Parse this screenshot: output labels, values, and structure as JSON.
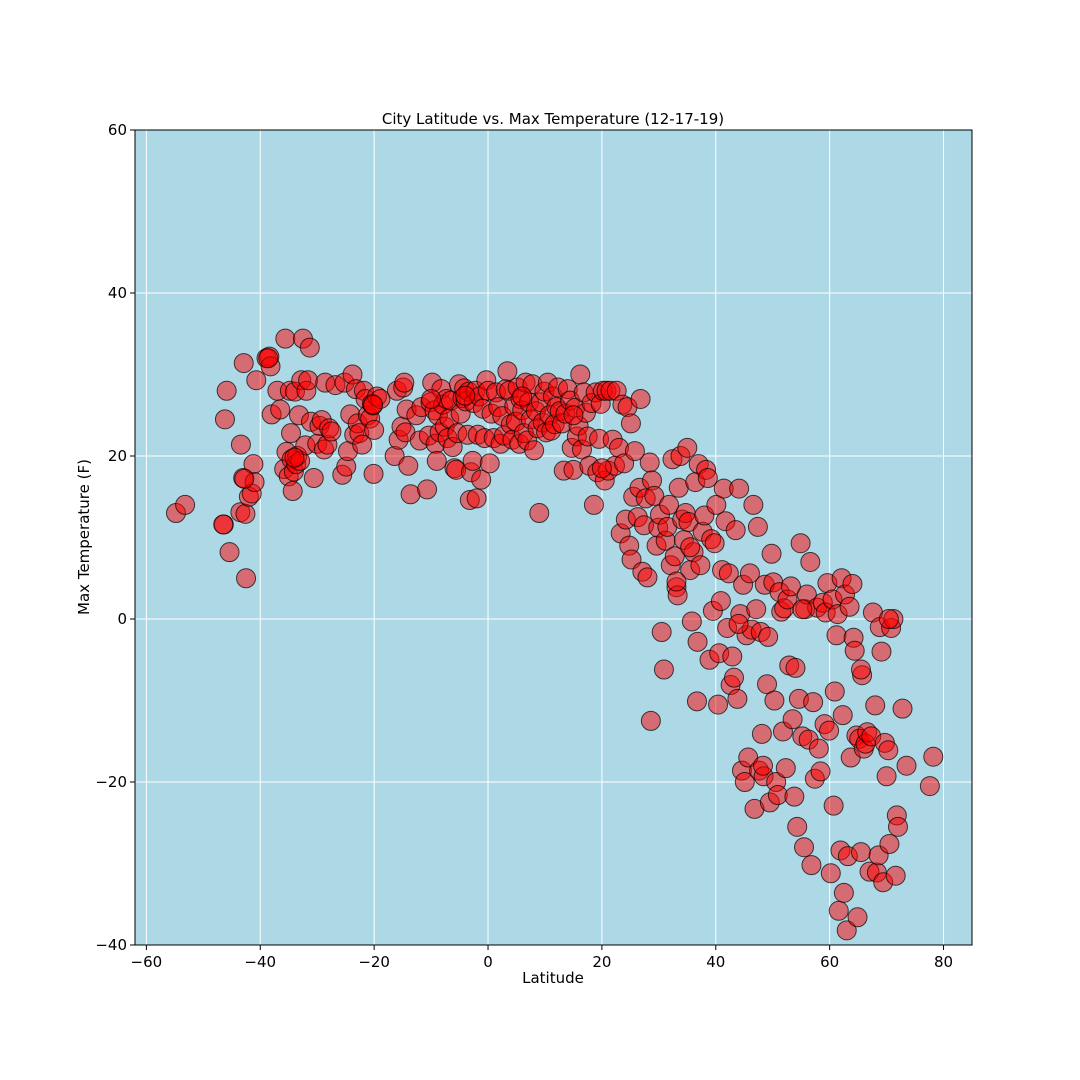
{
  "chart_data": {
    "type": "scatter",
    "title": "City Latitude vs. Max Temperature (12-17-19)",
    "xlabel": "Latitude",
    "ylabel": "Max Temperature (F)",
    "xlim": [
      -62,
      85
    ],
    "ylim": [
      -40,
      60
    ],
    "xticks": [
      -60,
      -40,
      -20,
      0,
      20,
      40,
      60,
      80
    ],
    "yticks": [
      -40,
      -20,
      0,
      20,
      40,
      60
    ],
    "grid": true,
    "colors": {
      "background": "#add8e6",
      "marker_fill": "#ff0000",
      "marker_edge": "#000000",
      "grid": "#ffffff"
    },
    "points": [
      [
        -54.8,
        13.0
      ],
      [
        -53.2,
        14.0
      ],
      [
        -46.4,
        11.6
      ],
      [
        -46.2,
        24.5
      ],
      [
        -45.9,
        28.0
      ],
      [
        -45.4,
        8.2
      ],
      [
        -43.5,
        13.1
      ],
      [
        -43.4,
        21.4
      ],
      [
        -43.0,
        17.3
      ],
      [
        -42.9,
        31.4
      ],
      [
        -42.6,
        12.9
      ],
      [
        -42.5,
        5.0
      ],
      [
        -42.0,
        15.0
      ],
      [
        -41.5,
        15.4
      ],
      [
        -41.2,
        19.0
      ],
      [
        -41.0,
        16.8
      ],
      [
        -40.7,
        29.3
      ],
      [
        -38.9,
        32.0
      ],
      [
        -38.4,
        32.2
      ],
      [
        -38.2,
        31.0
      ],
      [
        -38.0,
        25.1
      ],
      [
        -37.0,
        28.0
      ],
      [
        -36.5,
        25.7
      ],
      [
        -35.8,
        18.4
      ],
      [
        -35.6,
        34.4
      ],
      [
        -35.4,
        20.5
      ],
      [
        -35.0,
        17.5
      ],
      [
        -34.8,
        28.0
      ],
      [
        -34.6,
        22.8
      ],
      [
        -34.5,
        19.6
      ],
      [
        -34.3,
        15.7
      ],
      [
        -34.1,
        18.1
      ],
      [
        -33.9,
        27.9
      ],
      [
        -33.7,
        19.0
      ],
      [
        -33.5,
        20.0
      ],
      [
        -33.2,
        25.0
      ],
      [
        -33.0,
        19.4
      ],
      [
        -32.8,
        29.3
      ],
      [
        -32.5,
        34.4
      ],
      [
        -32.1,
        21.3
      ],
      [
        -31.9,
        28.0
      ],
      [
        -31.6,
        29.3
      ],
      [
        -31.3,
        33.3
      ],
      [
        -31.1,
        24.2
      ],
      [
        -30.6,
        17.3
      ],
      [
        -30.0,
        21.5
      ],
      [
        -29.6,
        23.7
      ],
      [
        -29.2,
        24.4
      ],
      [
        -28.8,
        20.8
      ],
      [
        -28.6,
        29.0
      ],
      [
        -28.2,
        21.4
      ],
      [
        -27.9,
        23.4
      ],
      [
        -27.5,
        23.0
      ],
      [
        -26.8,
        28.7
      ],
      [
        -25.6,
        17.7
      ],
      [
        -25.2,
        29.0
      ],
      [
        -24.9,
        18.7
      ],
      [
        -24.6,
        20.6
      ],
      [
        -24.2,
        25.1
      ],
      [
        -23.8,
        30.0
      ],
      [
        -23.5,
        22.6
      ],
      [
        -23.2,
        28.2
      ],
      [
        -22.9,
        24.0
      ],
      [
        -22.6,
        22.8
      ],
      [
        -22.1,
        21.4
      ],
      [
        -21.8,
        28.0
      ],
      [
        -21.5,
        27.0
      ],
      [
        -21.1,
        25.0
      ],
      [
        -20.7,
        24.6
      ],
      [
        -20.4,
        26.4
      ],
      [
        -20.2,
        26.2
      ],
      [
        -20.0,
        23.2
      ],
      [
        -20.1,
        17.8
      ],
      [
        -19.5,
        27.3
      ],
      [
        -18.9,
        27.0
      ],
      [
        -16.4,
        20.0
      ],
      [
        -16.0,
        28.0
      ],
      [
        -15.7,
        22.0
      ],
      [
        -15.2,
        23.6
      ],
      [
        -14.9,
        28.4
      ],
      [
        -14.7,
        29.0
      ],
      [
        -14.5,
        22.9
      ],
      [
        -14.3,
        25.7
      ],
      [
        -14.0,
        18.8
      ],
      [
        -13.6,
        15.3
      ],
      [
        -12.6,
        25.0
      ],
      [
        -12.0,
        21.9
      ],
      [
        -11.7,
        26.0
      ],
      [
        -10.7,
        15.9
      ],
      [
        -10.4,
        22.5
      ],
      [
        -10.1,
        26.6
      ],
      [
        -9.8,
        29.0
      ],
      [
        -9.4,
        25.6
      ],
      [
        -9.2,
        21.5
      ],
      [
        -9.0,
        19.4
      ],
      [
        -8.8,
        25.0
      ],
      [
        -8.5,
        22.9
      ],
      [
        -8.2,
        28.2
      ],
      [
        -7.9,
        26.3
      ],
      [
        -7.6,
        23.6
      ],
      [
        -7.3,
        27.0
      ],
      [
        -7.1,
        22.2
      ],
      [
        -6.8,
        24.6
      ],
      [
        -6.5,
        26.8
      ],
      [
        -6.2,
        21.1
      ],
      [
        -5.9,
        18.5
      ],
      [
        -5.6,
        18.3
      ],
      [
        -5.4,
        22.8
      ],
      [
        -5.1,
        28.8
      ],
      [
        -4.8,
        25.2
      ],
      [
        -4.5,
        27.1
      ],
      [
        -4.2,
        28.3
      ],
      [
        -3.9,
        26.7
      ],
      [
        -3.6,
        22.6
      ],
      [
        -3.4,
        27.9
      ],
      [
        -3.2,
        14.6
      ],
      [
        -3.0,
        18.0
      ],
      [
        -2.7,
        19.4
      ],
      [
        -2.5,
        26.5
      ],
      [
        -2.2,
        28.0
      ],
      [
        -2.0,
        14.8
      ],
      [
        -1.8,
        22.6
      ],
      [
        -1.5,
        27.3
      ],
      [
        -1.2,
        17.1
      ],
      [
        -0.9,
        25.8
      ],
      [
        -0.6,
        22.2
      ],
      [
        -0.3,
        29.3
      ],
      [
        0.0,
        28.0
      ],
      [
        0.3,
        19.1
      ],
      [
        0.6,
        25.2
      ],
      [
        1.0,
        22.2
      ],
      [
        1.4,
        27.8
      ],
      [
        1.8,
        26.0
      ],
      [
        2.2,
        21.5
      ],
      [
        2.5,
        24.9
      ],
      [
        2.8,
        22.5
      ],
      [
        3.1,
        28.2
      ],
      [
        3.4,
        30.4
      ],
      [
        3.7,
        28.0
      ],
      [
        4.0,
        23.9
      ],
      [
        4.3,
        22.0
      ],
      [
        4.6,
        26.1
      ],
      [
        4.9,
        24.2
      ],
      [
        5.2,
        28.4
      ],
      [
        5.5,
        21.5
      ],
      [
        5.7,
        27.0
      ],
      [
        6.0,
        25.6
      ],
      [
        6.3,
        22.8
      ],
      [
        6.6,
        29.0
      ],
      [
        6.9,
        21.9
      ],
      [
        7.2,
        26.6
      ],
      [
        7.5,
        24.5
      ],
      [
        7.8,
        28.8
      ],
      [
        8.1,
        20.7
      ],
      [
        8.4,
        25.5
      ],
      [
        8.7,
        23.4
      ],
      [
        9.0,
        13.0
      ],
      [
        9.3,
        26.6
      ],
      [
        9.6,
        24.1
      ],
      [
        9.9,
        27.9
      ],
      [
        10.2,
        22.9
      ],
      [
        10.5,
        29.0
      ],
      [
        10.8,
        25.0
      ],
      [
        11.1,
        23.1
      ],
      [
        11.4,
        27.3
      ],
      [
        11.7,
        23.9
      ],
      [
        12.0,
        26.0
      ],
      [
        12.3,
        28.4
      ],
      [
        12.6,
        25.5
      ],
      [
        13.0,
        24.0
      ],
      [
        13.3,
        18.2
      ],
      [
        13.6,
        25.2
      ],
      [
        14.0,
        28.2
      ],
      [
        14.4,
        26.8
      ],
      [
        14.7,
        21.0
      ],
      [
        15.0,
        18.3
      ],
      [
        15.3,
        25.9
      ],
      [
        15.6,
        22.4
      ],
      [
        15.9,
        23.7
      ],
      [
        16.2,
        30.0
      ],
      [
        16.5,
        20.8
      ],
      [
        16.8,
        27.8
      ],
      [
        17.2,
        25.3
      ],
      [
        17.5,
        22.4
      ],
      [
        17.8,
        18.8
      ],
      [
        18.2,
        26.5
      ],
      [
        18.6,
        14.0
      ],
      [
        18.9,
        27.8
      ],
      [
        19.2,
        18.0
      ],
      [
        19.5,
        22.1
      ],
      [
        19.8,
        26.4
      ],
      [
        20.2,
        28.0
      ],
      [
        20.5,
        17.0
      ],
      [
        20.8,
        28.0
      ],
      [
        21.1,
        18.2
      ],
      [
        21.5,
        28.0
      ],
      [
        21.9,
        22.0
      ],
      [
        22.3,
        18.8
      ],
      [
        22.6,
        28.0
      ],
      [
        23.0,
        21.0
      ],
      [
        23.3,
        10.5
      ],
      [
        23.6,
        26.3
      ],
      [
        23.9,
        19.1
      ],
      [
        24.2,
        12.2
      ],
      [
        24.5,
        26.0
      ],
      [
        24.8,
        9.0
      ],
      [
        25.1,
        24.0
      ],
      [
        25.2,
        7.3
      ],
      [
        25.5,
        15.0
      ],
      [
        25.8,
        20.6
      ],
      [
        26.3,
        12.5
      ],
      [
        26.6,
        16.1
      ],
      [
        26.8,
        27.0
      ],
      [
        27.1,
        5.8
      ],
      [
        27.4,
        11.5
      ],
      [
        27.7,
        14.8
      ],
      [
        28.0,
        5.1
      ],
      [
        28.4,
        19.2
      ],
      [
        28.6,
        -12.5
      ],
      [
        28.8,
        17.0
      ],
      [
        29.2,
        15.1
      ],
      [
        29.6,
        9.0
      ],
      [
        29.9,
        11.2
      ],
      [
        30.2,
        12.8
      ],
      [
        30.5,
        -1.6
      ],
      [
        30.9,
        -6.2
      ],
      [
        31.2,
        9.6
      ],
      [
        31.5,
        11.3
      ],
      [
        31.8,
        14.0
      ],
      [
        32.1,
        6.6
      ],
      [
        32.4,
        19.6
      ],
      [
        32.8,
        7.7
      ],
      [
        33.1,
        3.9
      ],
      [
        33.3,
        2.9
      ],
      [
        33.5,
        16.1
      ],
      [
        33.8,
        20.0
      ],
      [
        34.1,
        12.2
      ],
      [
        34.4,
        9.7
      ],
      [
        34.7,
        13.0
      ],
      [
        35.0,
        21.0
      ],
      [
        35.2,
        11.9
      ],
      [
        35.5,
        6.0
      ],
      [
        35.8,
        -0.3
      ],
      [
        36.1,
        8.2
      ],
      [
        36.4,
        16.8
      ],
      [
        36.7,
        -10.1
      ],
      [
        36.8,
        -2.8
      ],
      [
        37.0,
        19.0
      ],
      [
        37.3,
        6.6
      ],
      [
        37.7,
        10.7
      ],
      [
        38.0,
        12.7
      ],
      [
        38.3,
        18.3
      ],
      [
        38.6,
        17.3
      ],
      [
        38.9,
        -5.0
      ],
      [
        39.2,
        9.8
      ],
      [
        39.5,
        1.0
      ],
      [
        39.8,
        9.3
      ],
      [
        40.1,
        14.0
      ],
      [
        40.4,
        -10.5
      ],
      [
        40.6,
        -4.2
      ],
      [
        40.9,
        2.2
      ],
      [
        41.1,
        6.0
      ],
      [
        41.4,
        16.0
      ],
      [
        41.7,
        12.0
      ],
      [
        42.0,
        -1.1
      ],
      [
        42.3,
        5.6
      ],
      [
        42.6,
        -8.1
      ],
      [
        42.9,
        -4.6
      ],
      [
        43.2,
        -7.2
      ],
      [
        43.5,
        10.9
      ],
      [
        43.8,
        -9.8
      ],
      [
        44.1,
        16.0
      ],
      [
        44.3,
        0.6
      ],
      [
        44.6,
        -18.6
      ],
      [
        44.8,
        4.2
      ],
      [
        45.1,
        -20.0
      ],
      [
        45.4,
        -2.0
      ],
      [
        45.7,
        -17.0
      ],
      [
        46.0,
        5.6
      ],
      [
        46.3,
        -1.3
      ],
      [
        46.6,
        14.0
      ],
      [
        46.8,
        -23.3
      ],
      [
        47.1,
        1.2
      ],
      [
        47.4,
        11.3
      ],
      [
        47.6,
        -18.6
      ],
      [
        47.9,
        -1.6
      ],
      [
        48.1,
        -14.1
      ],
      [
        48.4,
        -19.3
      ],
      [
        48.6,
        4.2
      ],
      [
        49.0,
        -8.0
      ],
      [
        49.2,
        -2.2
      ],
      [
        49.5,
        -22.5
      ],
      [
        49.8,
        8.0
      ],
      [
        50.1,
        4.5
      ],
      [
        50.3,
        -10.0
      ],
      [
        50.6,
        -20.0
      ],
      [
        50.9,
        -21.6
      ],
      [
        51.2,
        3.3
      ],
      [
        51.5,
        0.9
      ],
      [
        51.8,
        -13.8
      ],
      [
        52.0,
        1.3
      ],
      [
        52.3,
        -18.3
      ],
      [
        52.6,
        2.4
      ],
      [
        52.9,
        -5.7
      ],
      [
        53.2,
        4.0
      ],
      [
        53.5,
        -12.3
      ],
      [
        53.8,
        -21.8
      ],
      [
        54.0,
        -6.0
      ],
      [
        54.3,
        -25.5
      ],
      [
        54.6,
        -9.8
      ],
      [
        54.9,
        9.3
      ],
      [
        55.2,
        -14.4
      ],
      [
        55.5,
        -28.0
      ],
      [
        55.7,
        1.2
      ],
      [
        56.0,
        3.0
      ],
      [
        56.3,
        -14.8
      ],
      [
        56.6,
        7.0
      ],
      [
        56.8,
        -30.2
      ],
      [
        57.1,
        -10.2
      ],
      [
        57.4,
        -19.6
      ],
      [
        57.8,
        1.4
      ],
      [
        58.1,
        -15.9
      ],
      [
        58.4,
        -18.7
      ],
      [
        58.8,
        2.0
      ],
      [
        59.1,
        -12.9
      ],
      [
        59.3,
        0.8
      ],
      [
        59.6,
        4.4
      ],
      [
        59.9,
        -13.7
      ],
      [
        60.2,
        -31.2
      ],
      [
        60.5,
        2.4
      ],
      [
        60.7,
        -22.9
      ],
      [
        60.9,
        -8.9
      ],
      [
        61.2,
        -2.0
      ],
      [
        61.4,
        0.6
      ],
      [
        61.6,
        -35.8
      ],
      [
        61.9,
        -28.4
      ],
      [
        62.1,
        5.0
      ],
      [
        62.3,
        -11.8
      ],
      [
        62.5,
        -33.6
      ],
      [
        62.7,
        3.0
      ],
      [
        63.0,
        -38.2
      ],
      [
        63.2,
        -29.1
      ],
      [
        63.5,
        1.5
      ],
      [
        63.7,
        -17.0
      ],
      [
        64.0,
        4.3
      ],
      [
        64.2,
        -2.3
      ],
      [
        64.4,
        -3.9
      ],
      [
        64.7,
        -14.3
      ],
      [
        64.9,
        -36.6
      ],
      [
        65.2,
        -14.7
      ],
      [
        65.5,
        -28.6
      ],
      [
        65.7,
        -6.9
      ],
      [
        66.0,
        -15.9
      ],
      [
        66.3,
        -15.3
      ],
      [
        66.6,
        -13.9
      ],
      [
        67.0,
        -31.0
      ],
      [
        67.3,
        -14.4
      ],
      [
        67.6,
        0.8
      ],
      [
        68.0,
        -10.6
      ],
      [
        68.3,
        -31.1
      ],
      [
        68.6,
        -29.0
      ],
      [
        68.8,
        -1.0
      ],
      [
        69.1,
        -4.0
      ],
      [
        69.4,
        -32.3
      ],
      [
        69.7,
        -15.2
      ],
      [
        70.0,
        -19.3
      ],
      [
        70.3,
        -16.1
      ],
      [
        70.5,
        -27.6
      ],
      [
        70.8,
        -1.1
      ],
      [
        71.2,
        0.0
      ],
      [
        71.6,
        -31.5
      ],
      [
        71.8,
        -24.1
      ],
      [
        72.0,
        -25.5
      ],
      [
        72.8,
        -11.0
      ],
      [
        73.5,
        -18.0
      ],
      [
        77.6,
        -20.5
      ],
      [
        78.2,
        -16.9
      ],
      [
        70.4,
        0.0
      ],
      [
        65.5,
        -6.2
      ],
      [
        55.2,
        1.2
      ],
      [
        48.3,
        -18.0
      ],
      [
        44.0,
        -0.6
      ],
      [
        33.1,
        4.6
      ],
      [
        35.5,
        8.8
      ],
      [
        20.0,
        18.5
      ],
      [
        15.0,
        25.0
      ],
      [
        6.0,
        27.3
      ],
      [
        -4.0,
        27.4
      ],
      [
        -10.0,
        27.0
      ],
      [
        -34.0,
        19.8
      ],
      [
        -46.5,
        11.6
      ],
      [
        -42.8,
        17.2
      ],
      [
        -38.6,
        32.0
      ],
      [
        -20.2,
        26.3
      ]
    ]
  }
}
